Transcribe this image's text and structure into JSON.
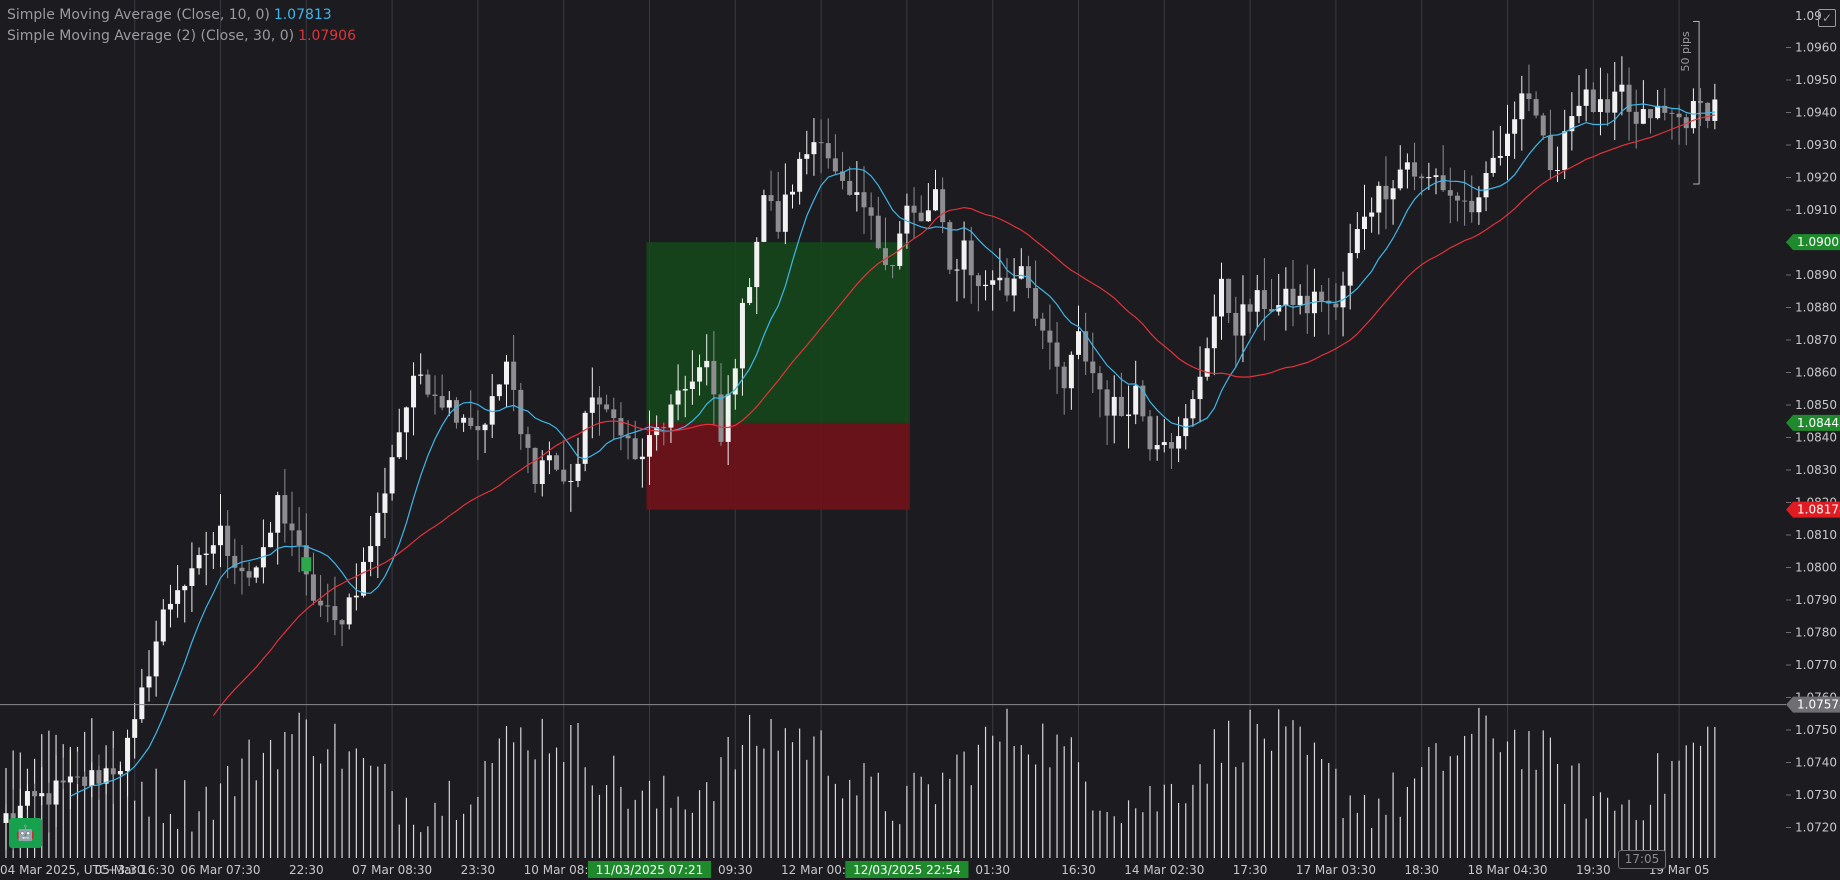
{
  "legend": {
    "sma1_label": "Simple Moving Average (Close, 10, 0)",
    "sma1_value": "1.07813",
    "sma2_label": "Simple Moving Average (2) (Close, 30, 0)",
    "sma2_value": "1.07906"
  },
  "colors": {
    "background": "#1b1b20",
    "sma1": "#3fb6e8",
    "sma2": "#e0333a",
    "profit_zone": "#15491b",
    "loss_zone": "#711218",
    "tp_tag": "#1e8a2c",
    "sl_tag": "#e01b22"
  },
  "icons": {
    "corner_button": "expand-check-icon",
    "bottom_button": "trading-bot-icon",
    "clock_icon": "clock-icon"
  },
  "clock": "17:05",
  "measure_label": "50 pips",
  "chart_data": {
    "type": "candlestick",
    "instrument_timezone": "UTC+3:30",
    "ylim": [
      1.0715,
      1.0975
    ],
    "y_ticks": [
      "1.0720",
      "1.0730",
      "1.0740",
      "1.0750",
      "1.0760",
      "1.0770",
      "1.0780",
      "1.0790",
      "1.0800",
      "1.0810",
      "1.0820",
      "1.0830",
      "1.0840",
      "1.0850",
      "1.0860",
      "1.0870",
      "1.0880",
      "1.0890",
      "1.0900",
      "1.0910",
      "1.0920",
      "1.0930",
      "1.0940",
      "1.0950",
      "1.0960",
      "1.0970"
    ],
    "top_label": "1.09",
    "x_labels": [
      {
        "i": 0,
        "label": "04 Mar 2025, UTC+3:30"
      },
      {
        "i": 18,
        "label": "05 Mar 16:30"
      },
      {
        "i": 30,
        "label": "06 Mar 07:30"
      },
      {
        "i": 42,
        "label": "22:30"
      },
      {
        "i": 54,
        "label": "07 Mar 08:30"
      },
      {
        "i": 66,
        "label": "23:30"
      },
      {
        "i": 78,
        "label": "10 Mar 08:30"
      },
      {
        "i": 90,
        "label": "11/03/2025 07:21",
        "highlight": true
      },
      {
        "i": 102,
        "label": "09:30"
      },
      {
        "i": 114,
        "label": "12 Mar 00:30"
      },
      {
        "i": 126,
        "label": "12/03/2025 22:54",
        "highlight": true
      },
      {
        "i": 138,
        "label": "01:30"
      },
      {
        "i": 150,
        "label": "16:30"
      },
      {
        "i": 162,
        "label": "14 Mar 02:30"
      },
      {
        "i": 174,
        "label": "17:30"
      },
      {
        "i": 186,
        "label": "17 Mar 03:30"
      },
      {
        "i": 198,
        "label": "18:30"
      },
      {
        "i": 210,
        "label": "18 Mar 04:30"
      },
      {
        "i": 222,
        "label": "19:30"
      },
      {
        "i": 234,
        "label": "19 Mar 05"
      }
    ],
    "levels": {
      "take_profit": 1.09001,
      "entry": 1.08445,
      "stop_loss": 1.08178,
      "crosshair": 1.07578
    },
    "level_labels": {
      "take_profit": "1.09001",
      "entry": "1.08445",
      "stop_loss": "1.08178",
      "crosshair": "1.07578"
    },
    "position": {
      "from_index": 90,
      "to_index": 126
    },
    "measure": {
      "index": 234,
      "from": 1.0918,
      "to": 1.0968
    },
    "anchors": [
      [
        0,
        1.0723
      ],
      [
        4,
        1.0728
      ],
      [
        8,
        1.0732
      ],
      [
        12,
        1.0735
      ],
      [
        16,
        1.074
      ],
      [
        18,
        1.075
      ],
      [
        20,
        1.077
      ],
      [
        22,
        1.0785
      ],
      [
        24,
        1.0795
      ],
      [
        26,
        1.0796
      ],
      [
        28,
        1.0805
      ],
      [
        30,
        1.081
      ],
      [
        32,
        1.0803
      ],
      [
        34,
        1.0798
      ],
      [
        36,
        1.0802
      ],
      [
        38,
        1.082
      ],
      [
        40,
        1.0812
      ],
      [
        42,
        1.0795
      ],
      [
        44,
        1.0788
      ],
      [
        46,
        1.0782
      ],
      [
        48,
        1.079
      ],
      [
        50,
        1.08
      ],
      [
        52,
        1.0815
      ],
      [
        54,
        1.0835
      ],
      [
        56,
        1.085
      ],
      [
        58,
        1.086
      ],
      [
        60,
        1.0855
      ],
      [
        62,
        1.085
      ],
      [
        64,
        1.0848
      ],
      [
        66,
        1.0843
      ],
      [
        68,
        1.085
      ],
      [
        70,
        1.0863
      ],
      [
        72,
        1.084
      ],
      [
        74,
        1.083
      ],
      [
        76,
        1.0835
      ],
      [
        78,
        1.0825
      ],
      [
        80,
        1.0832
      ],
      [
        82,
        1.0855
      ],
      [
        84,
        1.0845
      ],
      [
        86,
        1.0845
      ],
      [
        88,
        1.0832
      ],
      [
        90,
        1.0838
      ],
      [
        92,
        1.0845
      ],
      [
        94,
        1.085
      ],
      [
        96,
        1.086
      ],
      [
        98,
        1.0862
      ],
      [
        100,
        1.0838
      ],
      [
        102,
        1.0865
      ],
      [
        104,
        1.089
      ],
      [
        106,
        1.0915
      ],
      [
        108,
        1.0905
      ],
      [
        110,
        1.0918
      ],
      [
        112,
        1.0928
      ],
      [
        114,
        1.0935
      ],
      [
        116,
        1.092
      ],
      [
        118,
        1.0912
      ],
      [
        120,
        1.091
      ],
      [
        122,
        1.09
      ],
      [
        124,
        1.0895
      ],
      [
        126,
        1.091
      ],
      [
        128,
        1.0905
      ],
      [
        130,
        1.0915
      ],
      [
        132,
        1.089
      ],
      [
        134,
        1.09
      ],
      [
        136,
        1.0885
      ],
      [
        138,
        1.089
      ],
      [
        140,
        1.0885
      ],
      [
        142,
        1.0895
      ],
      [
        144,
        1.088
      ],
      [
        146,
        1.0865
      ],
      [
        148,
        1.0855
      ],
      [
        150,
        1.087
      ],
      [
        152,
        1.086
      ],
      [
        154,
        1.085
      ],
      [
        156,
        1.0848
      ],
      [
        158,
        1.0855
      ],
      [
        160,
        1.084
      ],
      [
        162,
        1.0842
      ],
      [
        164,
        1.0838
      ],
      [
        166,
        1.085
      ],
      [
        168,
        1.087
      ],
      [
        170,
        1.0885
      ],
      [
        172,
        1.0875
      ],
      [
        174,
        1.088
      ],
      [
        176,
        1.0882
      ],
      [
        178,
        1.088
      ],
      [
        180,
        1.0883
      ],
      [
        182,
        1.088
      ],
      [
        184,
        1.0884
      ],
      [
        186,
        1.0878
      ],
      [
        188,
        1.0895
      ],
      [
        190,
        1.091
      ],
      [
        192,
        1.0915
      ],
      [
        194,
        1.092
      ],
      [
        196,
        1.0925
      ],
      [
        198,
        1.0918
      ],
      [
        200,
        1.092
      ],
      [
        202,
        1.0915
      ],
      [
        204,
        1.0912
      ],
      [
        206,
        1.091
      ],
      [
        208,
        1.0925
      ],
      [
        210,
        1.093
      ],
      [
        212,
        1.095
      ],
      [
        214,
        1.094
      ],
      [
        216,
        1.0918
      ],
      [
        218,
        1.0935
      ],
      [
        220,
        1.0945
      ],
      [
        222,
        1.0942
      ],
      [
        224,
        1.0938
      ],
      [
        226,
        1.0946
      ],
      [
        228,
        1.0935
      ],
      [
        230,
        1.094
      ],
      [
        234,
        1.0938
      ]
    ],
    "sma10_last": 1.07813,
    "sma30_last": 1.07906
  }
}
